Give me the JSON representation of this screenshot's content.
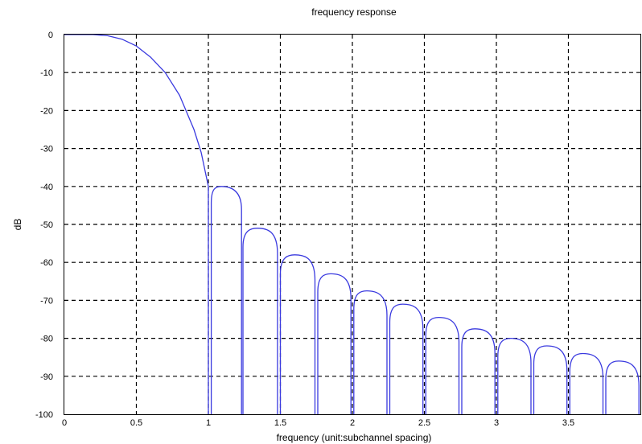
{
  "chart_data": {
    "type": "line",
    "title": "frequency response",
    "xlabel": "frequency (unit:subchannel spacing)",
    "ylabel": "dB",
    "xlim": [
      0,
      4
    ],
    "ylim": [
      -100,
      0
    ],
    "xticks": [
      0,
      0.5,
      1,
      1.5,
      2,
      2.5,
      3,
      3.5
    ],
    "xtick_labels": [
      "0",
      "0.5",
      "1",
      "1.5",
      "2",
      "2.5",
      "3",
      "3.5"
    ],
    "yticks": [
      0,
      -10,
      -20,
      -30,
      -40,
      -50,
      -60,
      -70,
      -80,
      -90,
      -100
    ],
    "ytick_labels": [
      "0",
      "-10",
      "-20",
      "-30",
      "-40",
      "-50",
      "-60",
      "-70",
      "-80",
      "-90",
      "-100"
    ],
    "grid": true,
    "series": [
      {
        "color": "#3a3adf",
        "main_lobe": [
          [
            0,
            0
          ],
          [
            0.1,
            0
          ],
          [
            0.2,
            0
          ],
          [
            0.3,
            -0.3
          ],
          [
            0.4,
            -1.2
          ],
          [
            0.5,
            -3
          ],
          [
            0.6,
            -6
          ],
          [
            0.7,
            -10
          ],
          [
            0.8,
            -16
          ],
          [
            0.9,
            -25
          ],
          [
            0.95,
            -31
          ],
          [
            1.0,
            -40
          ],
          [
            1.0,
            -100
          ]
        ],
        "side_lobes": [
          {
            "x_start": 1.02,
            "x_end": 1.23,
            "peak_x": 1.09,
            "peak_db": -40
          },
          {
            "x_start": 1.24,
            "x_end": 1.48,
            "peak_x": 1.34,
            "peak_db": -51
          },
          {
            "x_start": 1.5,
            "x_end": 1.74,
            "peak_x": 1.6,
            "peak_db": -58
          },
          {
            "x_start": 1.76,
            "x_end": 1.99,
            "peak_x": 1.85,
            "peak_db": -63
          },
          {
            "x_start": 2.01,
            "x_end": 2.24,
            "peak_x": 2.1,
            "peak_db": -67.5
          },
          {
            "x_start": 2.26,
            "x_end": 2.49,
            "peak_x": 2.35,
            "peak_db": -71
          },
          {
            "x_start": 2.51,
            "x_end": 2.74,
            "peak_x": 2.6,
            "peak_db": -74.5
          },
          {
            "x_start": 2.76,
            "x_end": 2.99,
            "peak_x": 2.85,
            "peak_db": -77.5
          },
          {
            "x_start": 3.01,
            "x_end": 3.24,
            "peak_x": 3.1,
            "peak_db": -80
          },
          {
            "x_start": 3.26,
            "x_end": 3.49,
            "peak_x": 3.35,
            "peak_db": -82
          },
          {
            "x_start": 3.51,
            "x_end": 3.74,
            "peak_x": 3.6,
            "peak_db": -84
          },
          {
            "x_start": 3.76,
            "x_end": 3.99,
            "peak_x": 3.85,
            "peak_db": -86
          }
        ]
      }
    ]
  }
}
